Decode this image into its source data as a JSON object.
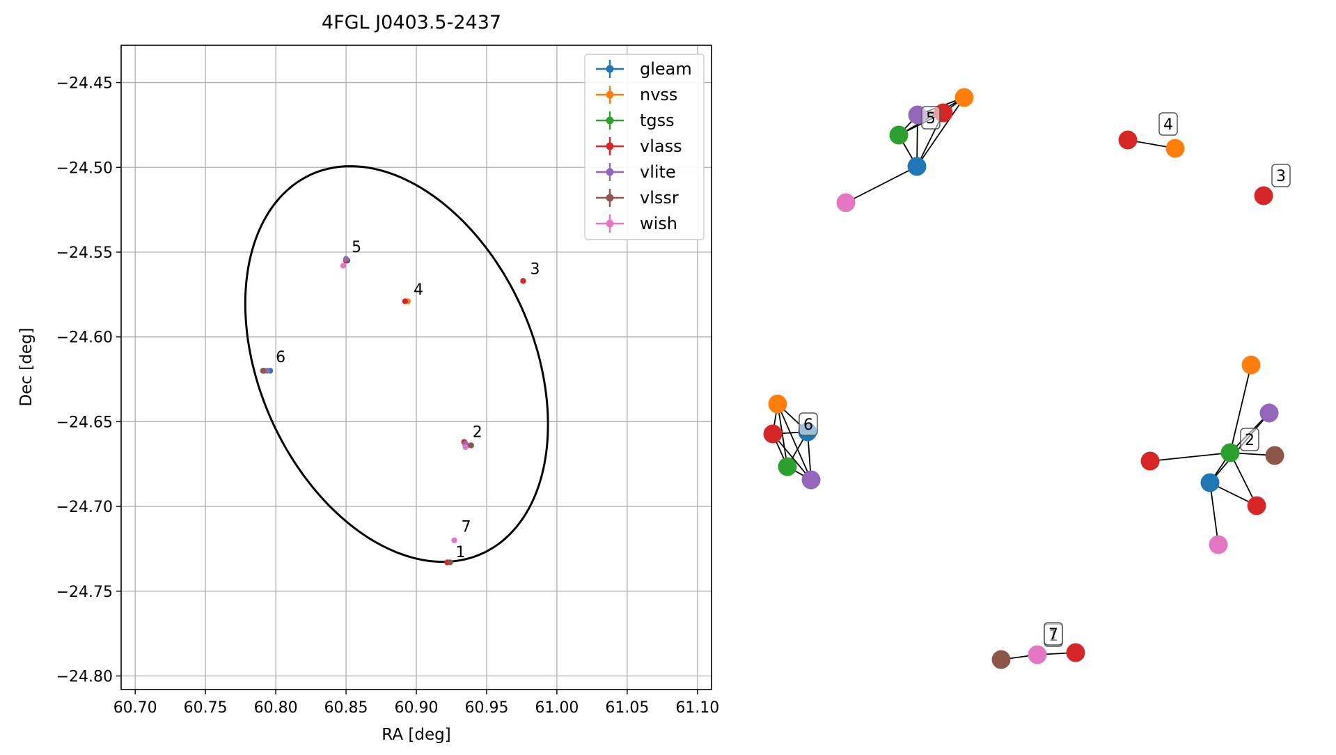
{
  "title": "4FGL J0403.5-2437",
  "colors": {
    "gleam": "#1f77b4",
    "nvss": "#ff7f0e",
    "tgss": "#2ca02c",
    "vlass": "#d62728",
    "vlite": "#9467bd",
    "vlssr": "#8c564b",
    "wish": "#e377c2"
  },
  "chart_data": [
    {
      "type": "scatter",
      "title": "4FGL J0403.5-2437",
      "xlabel": "RA [deg]",
      "ylabel": "Dec [deg]",
      "xlim": [
        60.69,
        61.11
      ],
      "ylim": [
        -24.808,
        -24.428
      ],
      "xticks": [
        60.7,
        60.75,
        60.8,
        60.85,
        60.9,
        60.95,
        61.0,
        61.05,
        61.1
      ],
      "xtick_labels": [
        "60.70",
        "60.75",
        "60.80",
        "60.85",
        "60.90",
        "60.95",
        "61.00",
        "61.05",
        "61.10"
      ],
      "yticks": [
        -24.45,
        -24.5,
        -24.55,
        -24.6,
        -24.65,
        -24.7,
        -24.75,
        -24.8
      ],
      "ytick_labels": [
        "−24.45",
        "−24.50",
        "−24.55",
        "−24.60",
        "−24.65",
        "−24.70",
        "−24.75",
        "−24.80"
      ],
      "grid": true,
      "legend_position": "top-right",
      "series": [
        {
          "name": "gleam",
          "points": [
            {
              "x": 60.851,
              "y": -24.555
            },
            {
              "x": 60.796,
              "y": -24.62
            },
            {
              "x": 60.936,
              "y": -24.664
            }
          ]
        },
        {
          "name": "nvss",
          "points": [
            {
              "x": 60.894,
              "y": -24.579
            },
            {
              "x": 60.935,
              "y": -24.663
            }
          ]
        },
        {
          "name": "tgss",
          "points": [
            {
              "x": 60.935,
              "y": -24.664
            },
            {
              "x": 60.792,
              "y": -24.62
            }
          ]
        },
        {
          "name": "vlass",
          "points": [
            {
              "x": 60.892,
              "y": -24.579
            },
            {
              "x": 60.976,
              "y": -24.567
            },
            {
              "x": 60.934,
              "y": -24.662
            },
            {
              "x": 60.922,
              "y": -24.733
            },
            {
              "x": 60.791,
              "y": -24.62
            },
            {
              "x": 60.85,
              "y": -24.555
            }
          ]
        },
        {
          "name": "vlite",
          "points": [
            {
              "x": 60.85,
              "y": -24.554
            },
            {
              "x": 60.935,
              "y": -24.663
            },
            {
              "x": 60.794,
              "y": -24.62
            }
          ]
        },
        {
          "name": "vlssr",
          "points": [
            {
              "x": 60.939,
              "y": -24.664
            },
            {
              "x": 60.924,
              "y": -24.733
            },
            {
              "x": 60.791,
              "y": -24.62
            }
          ]
        },
        {
          "name": "wish",
          "points": [
            {
              "x": 60.848,
              "y": -24.558
            },
            {
              "x": 60.935,
              "y": -24.665
            },
            {
              "x": 60.927,
              "y": -24.72
            }
          ]
        }
      ],
      "ellipse": {
        "center_ra": 60.886,
        "center_dec": -24.616,
        "semi_major_deg": 0.125,
        "semi_minor_deg": 0.087,
        "tilt_deg": 30
      },
      "annotations": [
        {
          "text": "1",
          "x": 60.928,
          "y": -24.73
        },
        {
          "text": "2",
          "x": 60.94,
          "y": -24.659
        },
        {
          "text": "3",
          "x": 60.981,
          "y": -24.563
        },
        {
          "text": "4",
          "x": 60.898,
          "y": -24.575
        },
        {
          "text": "5",
          "x": 60.854,
          "y": -24.55
        },
        {
          "text": "6",
          "x": 60.8,
          "y": -24.615
        },
        {
          "text": "7",
          "x": 60.932,
          "y": -24.715
        }
      ]
    },
    {
      "type": "network",
      "labels": [
        "1",
        "2",
        "3",
        "4",
        "5",
        "6",
        "7"
      ],
      "series": [
        {
          "name": "gleam"
        },
        {
          "name": "nvss"
        },
        {
          "name": "tgss"
        },
        {
          "name": "vlass"
        },
        {
          "name": "vlite"
        },
        {
          "name": "vlssr"
        },
        {
          "name": "wish"
        }
      ]
    }
  ]
}
